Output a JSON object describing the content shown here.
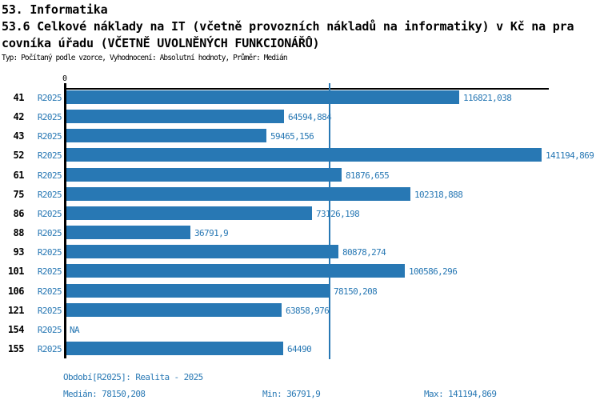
{
  "title": {
    "line1": "53. Informatika",
    "line2": "53.6 Celkové náklady na IT (včetně provozních nákladů na informatiky) v Kč na pra",
    "line3": "covníka úřadu (VČETNĚ UVOLNĚNÝCH FUNKCIONÁŘŮ)",
    "meta": "Typ: Počítaný podle vzorce, Vyhodnocení: Absolutní hodnoty, Průměr: Medián"
  },
  "axis": {
    "zero_label": "0"
  },
  "colors": {
    "bar": "#2878b4",
    "blue_text": "#2878b4",
    "median_line": "#2878b4",
    "axis": "#000000"
  },
  "chart_data": {
    "type": "bar",
    "orientation": "horizontal",
    "title": "53.6 Celkové náklady na IT (včetně provozních nákladů na informatiky) v Kč na pracovníka úřadu (VČETNĚ UVOLNĚNÝCH FUNKCIONÁŘŮ)",
    "categories": [
      "41",
      "42",
      "43",
      "52",
      "61",
      "75",
      "86",
      "88",
      "93",
      "101",
      "106",
      "121",
      "154",
      "155"
    ],
    "series_label": "R2025",
    "values": [
      116821.038,
      64594.884,
      59465.156,
      141194.869,
      81876.655,
      102318.888,
      73126.198,
      36791.9,
      80878.274,
      100586.296,
      78150.208,
      63858.976,
      null,
      64490
    ],
    "value_labels": [
      "116821,038",
      "64594,884",
      "59465,156",
      "141194,869",
      "81876,655",
      "102318,888",
      "73126,198",
      "36791,9",
      "80878,274",
      "100586,296",
      "78150,208",
      "63858,976",
      "NA",
      "64490"
    ],
    "xlim": [
      0,
      143400
    ],
    "median": 78150.208,
    "min": 36791.9,
    "max": 141194.869,
    "grid": false,
    "legend": false
  },
  "footer": {
    "period": "Období[R2025]: Realita - 2025",
    "median": "Medián: 78150,208",
    "min": "Min: 36791,9",
    "max": "Max: 141194,869"
  }
}
